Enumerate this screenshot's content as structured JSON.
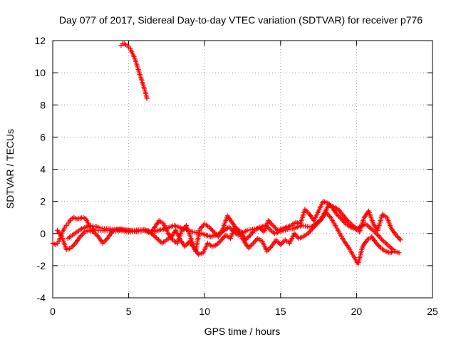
{
  "chart_data": {
    "type": "scatter",
    "title": "Day 077 of 2017, Sidereal Day-to-day VTEC variation (SDTVAR) for receiver p776",
    "xlabel": "GPS time / hours",
    "ylabel": "SDTVAR / TECUs",
    "xlim": [
      0,
      25
    ],
    "ylim": [
      -4,
      12
    ],
    "xticks": [
      0,
      5,
      10,
      15,
      20,
      25
    ],
    "yticks": [
      -4,
      -2,
      0,
      2,
      4,
      6,
      8,
      10,
      12
    ],
    "grid": true,
    "marker": "+",
    "color": "#ff0000",
    "series": [
      {
        "name": "early-high-arc",
        "x": [
          4.5,
          4.6,
          4.7,
          4.8,
          4.9,
          5.0,
          5.1,
          5.2,
          5.3,
          5.4,
          5.5,
          5.6,
          5.7,
          5.8,
          5.9,
          6.0,
          6.1,
          6.2
        ],
        "y": [
          11.7,
          11.8,
          11.8,
          11.75,
          11.7,
          11.6,
          11.5,
          11.3,
          11.1,
          10.9,
          10.6,
          10.3,
          10.0,
          9.7,
          9.4,
          9.1,
          8.8,
          8.4
        ]
      },
      {
        "name": "band-a",
        "x": [
          0.0,
          0.2,
          0.4,
          0.6,
          0.8,
          1.0,
          1.2,
          1.4,
          1.6,
          1.8,
          2.0,
          2.2,
          2.4,
          2.6,
          2.8,
          3.0,
          3.5,
          4.0,
          4.5,
          5.0,
          5.5,
          6.0,
          6.5,
          7.0,
          7.3,
          7.6,
          7.9,
          8.2,
          8.5,
          8.8,
          9.1,
          9.4,
          9.7,
          10.0,
          10.3,
          10.6,
          10.9,
          11.2,
          11.5,
          11.8,
          12.1,
          12.4,
          12.7,
          13.0,
          13.3,
          13.6,
          13.9,
          14.2,
          14.5,
          14.8,
          15.1,
          15.4,
          15.7,
          16.0,
          16.3,
          16.6,
          16.9,
          17.2,
          17.5,
          17.8,
          18.1,
          18.4,
          18.7,
          19.0,
          19.3,
          19.6,
          19.9,
          20.2,
          20.5,
          20.8,
          21.1,
          21.4,
          21.7,
          22.0,
          22.3,
          22.6,
          22.9
        ],
        "y": [
          -0.6,
          -0.7,
          -0.5,
          0.0,
          0.4,
          0.6,
          0.9,
          1.0,
          0.9,
          0.95,
          1.0,
          0.9,
          0.5,
          0.3,
          0.2,
          0.2,
          0.2,
          0.15,
          0.2,
          0.1,
          0.15,
          0.2,
          0.1,
          0.8,
          0.6,
          0.0,
          -0.4,
          -0.6,
          0.2,
          0.5,
          -0.3,
          -1.1,
          0.3,
          0.6,
          0.4,
          0.1,
          -0.2,
          0.3,
          1.1,
          0.7,
          0.3,
          0.1,
          -0.4,
          -0.1,
          0.2,
          0.4,
          0.1,
          0.8,
          0.5,
          0.2,
          0.3,
          0.4,
          0.5,
          0.7,
          0.6,
          1.5,
          1.2,
          0.8,
          1.4,
          2.0,
          1.9,
          1.6,
          1.2,
          0.9,
          0.6,
          0.4,
          0.3,
          0.1,
          1.0,
          1.4,
          0.6,
          0.2,
          1.2,
          1.0,
          0.3,
          -0.1,
          -0.4
        ]
      },
      {
        "name": "band-b",
        "x": [
          0.3,
          0.6,
          0.9,
          1.2,
          1.5,
          1.8,
          2.1,
          2.4,
          2.7,
          3.0,
          3.3,
          3.6,
          4.0,
          4.5,
          5.0,
          5.5,
          6.0,
          6.5,
          7.2,
          7.5,
          7.8,
          8.1,
          8.4,
          8.7,
          9.0,
          9.3,
          9.6,
          9.9,
          10.2,
          10.5,
          10.8,
          11.1,
          11.4,
          11.7,
          12.0,
          12.3,
          12.6,
          12.9,
          13.2,
          13.5,
          13.8,
          14.1,
          14.4,
          14.7,
          15.0,
          15.3,
          15.6,
          15.9,
          16.2,
          16.5,
          16.8,
          17.1,
          17.4,
          17.7,
          18.0,
          18.3,
          18.6,
          18.9,
          19.2,
          19.5,
          19.8,
          20.1,
          20.4,
          20.7,
          21.0,
          21.3,
          21.6,
          21.9,
          22.2,
          22.5,
          22.8
        ],
        "y": [
          0.2,
          -0.2,
          -1.0,
          -0.9,
          -0.6,
          -0.2,
          0.1,
          0.2,
          0.1,
          -0.2,
          -0.6,
          -0.3,
          0.2,
          0.3,
          0.2,
          0.1,
          0.2,
          0.0,
          -0.6,
          -0.4,
          -0.2,
          0.2,
          -0.4,
          -0.8,
          -0.5,
          -0.9,
          -1.3,
          -1.2,
          -0.6,
          -0.8,
          -0.7,
          -0.4,
          -0.1,
          -0.3,
          0.4,
          0.0,
          -0.5,
          -0.9,
          -0.6,
          -0.3,
          -0.5,
          -1.1,
          -0.8,
          -0.4,
          -0.7,
          -0.4,
          -0.6,
          0.0,
          -0.3,
          -0.2,
          0.0,
          0.3,
          0.6,
          0.9,
          1.3,
          1.0,
          0.5,
          0.0,
          -0.5,
          -0.9,
          -1.4,
          -1.9,
          -0.8,
          -0.4,
          -0.2,
          -0.6,
          -0.9,
          -1.1,
          -1.2,
          -1.1,
          -1.2
        ]
      },
      {
        "name": "band-c",
        "x": [
          1.0,
          1.3,
          1.6,
          1.9,
          2.2,
          2.5,
          2.8,
          3.1,
          3.4,
          3.7,
          4.2,
          4.8,
          5.4,
          6.0,
          6.6,
          7.4,
          8.0,
          8.6,
          9.2,
          9.8,
          10.4,
          11.0,
          11.6,
          12.2,
          12.8,
          13.4,
          14.0,
          14.6,
          15.2,
          15.8,
          16.4,
          17.0,
          17.6,
          18.2,
          18.8,
          19.4,
          20.0,
          20.6,
          21.2,
          21.8,
          22.4
        ],
        "y": [
          -0.3,
          -0.1,
          0.1,
          0.3,
          0.4,
          0.5,
          0.45,
          0.35,
          0.3,
          0.3,
          0.25,
          0.2,
          0.2,
          0.25,
          0.1,
          0.3,
          0.5,
          0.3,
          0.1,
          0.0,
          -0.2,
          0.0,
          0.4,
          -0.1,
          0.2,
          0.3,
          0.5,
          0.0,
          0.2,
          0.3,
          0.5,
          0.4,
          0.8,
          1.8,
          1.5,
          0.8,
          0.3,
          0.6,
          0.1,
          -0.5,
          -1.0
        ]
      }
    ]
  }
}
